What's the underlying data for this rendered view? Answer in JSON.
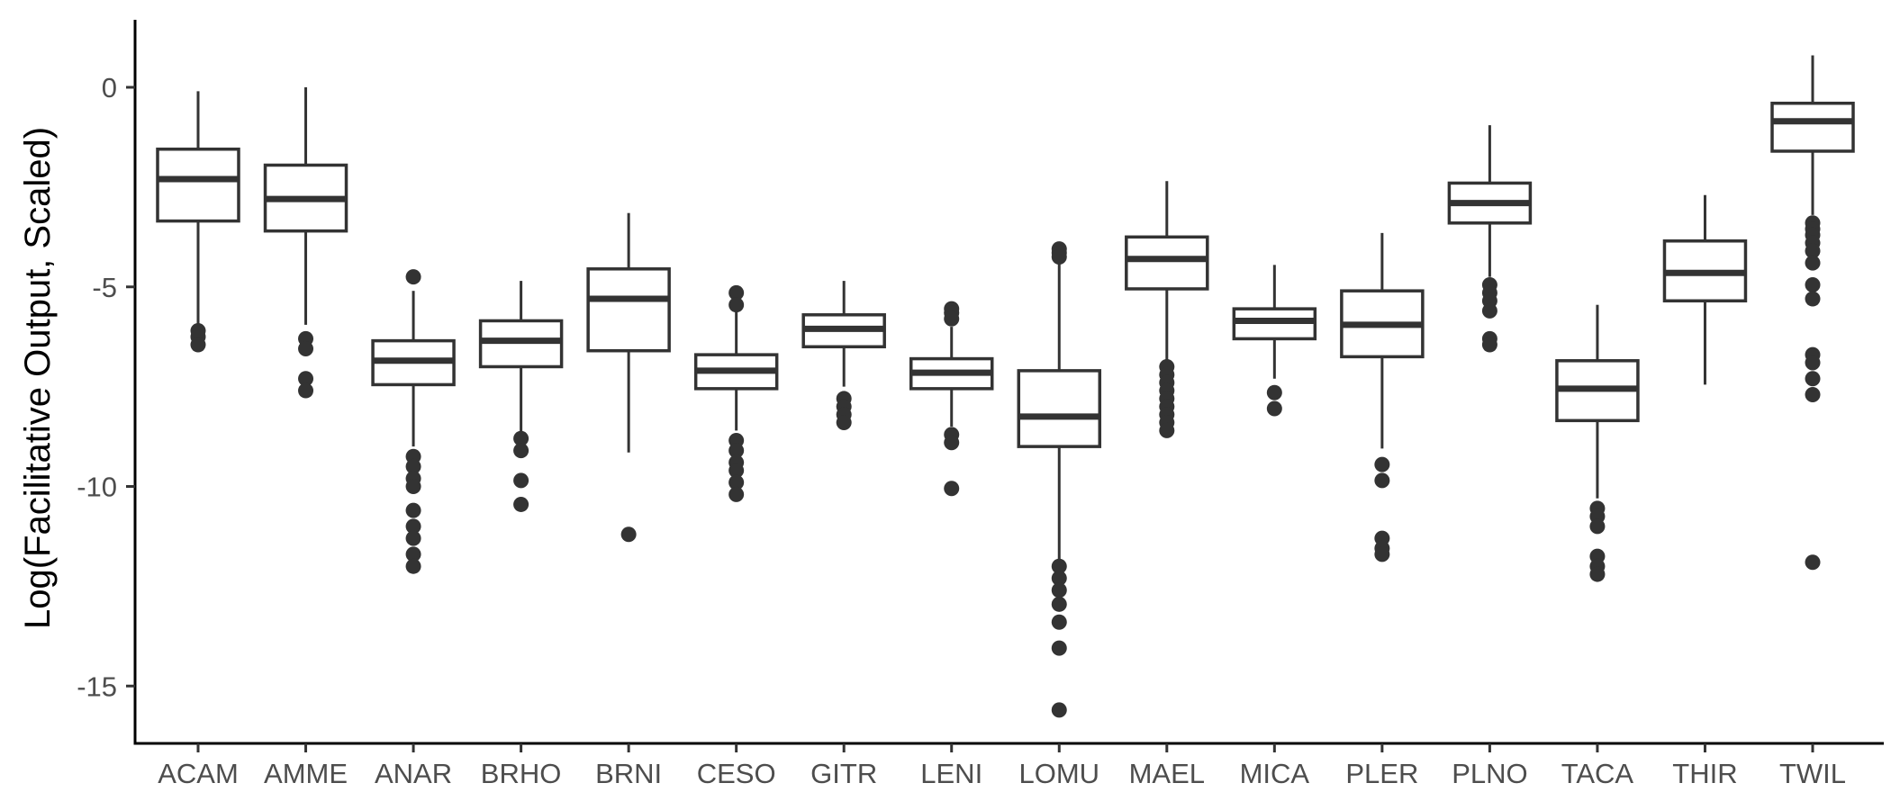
{
  "chart_data": {
    "type": "box",
    "title": "",
    "xlabel": "",
    "ylabel": "Log(Facilitative Output, Scaled)",
    "ylim": [
      -16.3,
      1.7
    ],
    "yticks": [
      0,
      -5,
      -10,
      -15
    ],
    "ytick_labels": [
      "0",
      "-5",
      "-10",
      "-15"
    ],
    "grid": false,
    "categories": [
      "ACAM",
      "AMME",
      "ANAR",
      "BRHO",
      "BRNI",
      "CESO",
      "GITR",
      "LENI",
      "LOMU",
      "MAEL",
      "MICA",
      "PLER",
      "PLNO",
      "TACA",
      "THIR",
      "TWIL"
    ],
    "boxes": [
      {
        "label": "ACAM",
        "whisker_low": -5.95,
        "q1": -3.35,
        "median": -2.3,
        "q3": -1.55,
        "whisker_high": -0.1,
        "outliers": [
          -6.1,
          -6.25,
          -6.45
        ]
      },
      {
        "label": "AMME",
        "whisker_low": -5.95,
        "q1": -3.6,
        "median": -2.8,
        "q3": -1.95,
        "whisker_high": 0.0,
        "outliers": [
          -6.3,
          -6.55,
          -7.3,
          -7.6
        ]
      },
      {
        "label": "ANAR",
        "whisker_low": -9.0,
        "q1": -7.45,
        "median": -6.85,
        "q3": -6.35,
        "whisker_high": -5.1,
        "outliers": [
          -4.75,
          -9.25,
          -9.5,
          -9.8,
          -10.0,
          -10.6,
          -11.0,
          -11.3,
          -11.7,
          -12.0
        ]
      },
      {
        "label": "BRHO",
        "whisker_low": -8.65,
        "q1": -7.0,
        "median": -6.35,
        "q3": -5.85,
        "whisker_high": -4.85,
        "outliers": [
          -8.8,
          -9.1,
          -9.85,
          -10.45
        ]
      },
      {
        "label": "BRNI",
        "whisker_low": -9.15,
        "q1": -6.6,
        "median": -5.3,
        "q3": -4.55,
        "whisker_high": -3.15,
        "outliers": [
          -11.2
        ]
      },
      {
        "label": "CESO",
        "whisker_low": -8.6,
        "q1": -7.55,
        "median": -7.1,
        "q3": -6.7,
        "whisker_high": -5.5,
        "outliers": [
          -5.15,
          -5.45,
          -8.85,
          -9.1,
          -9.4,
          -9.6,
          -9.9,
          -10.2
        ]
      },
      {
        "label": "GITR",
        "whisker_low": -7.5,
        "q1": -6.5,
        "median": -6.05,
        "q3": -5.7,
        "whisker_high": -4.85,
        "outliers": [
          -7.8,
          -8.0,
          -8.2,
          -8.4
        ]
      },
      {
        "label": "LENI",
        "whisker_low": -8.5,
        "q1": -7.55,
        "median": -7.15,
        "q3": -6.8,
        "whisker_high": -6.0,
        "outliers": [
          -5.55,
          -5.65,
          -5.8,
          -8.7,
          -8.9,
          -10.05
        ]
      },
      {
        "label": "LOMU",
        "whisker_low": -11.85,
        "q1": -9.0,
        "median": -8.25,
        "q3": -7.1,
        "whisker_high": -4.4,
        "outliers": [
          -4.05,
          -4.15,
          -4.25,
          -12.0,
          -12.3,
          -12.6,
          -12.95,
          -13.4,
          -14.05,
          -15.6
        ]
      },
      {
        "label": "MAEL",
        "whisker_low": -6.9,
        "q1": -5.05,
        "median": -4.3,
        "q3": -3.75,
        "whisker_high": -2.35,
        "outliers": [
          -7.0,
          -7.2,
          -7.4,
          -7.6,
          -7.8,
          -8.0,
          -8.2,
          -8.4,
          -8.6
        ]
      },
      {
        "label": "MICA",
        "whisker_low": -7.3,
        "q1": -6.3,
        "median": -5.85,
        "q3": -5.55,
        "whisker_high": -4.45,
        "outliers": [
          -7.65,
          -8.05
        ]
      },
      {
        "label": "PLER",
        "whisker_low": -9.05,
        "q1": -6.75,
        "median": -5.95,
        "q3": -5.1,
        "whisker_high": -3.65,
        "outliers": [
          -9.45,
          -9.85,
          -11.3,
          -11.55,
          -11.7
        ]
      },
      {
        "label": "PLNO",
        "whisker_low": -4.75,
        "q1": -3.4,
        "median": -2.9,
        "q3": -2.4,
        "whisker_high": -0.95,
        "outliers": [
          -4.95,
          -5.15,
          -5.35,
          -5.6,
          -6.3,
          -6.45
        ]
      },
      {
        "label": "TACA",
        "whisker_low": -10.3,
        "q1": -8.35,
        "median": -7.55,
        "q3": -6.85,
        "whisker_high": -5.45,
        "outliers": [
          -10.55,
          -10.75,
          -11.0,
          -11.75,
          -12.0,
          -12.2
        ]
      },
      {
        "label": "THIR",
        "whisker_low": -7.45,
        "q1": -5.35,
        "median": -4.65,
        "q3": -3.85,
        "whisker_high": -2.7,
        "outliers": []
      },
      {
        "label": "TWIL",
        "whisker_low": -3.2,
        "q1": -1.6,
        "median": -0.85,
        "q3": -0.4,
        "whisker_high": 0.8,
        "outliers": [
          -3.4,
          -3.55,
          -3.7,
          -3.9,
          -4.1,
          -4.4,
          -4.95,
          -5.3,
          -6.7,
          -6.9,
          -7.3,
          -7.7,
          -11.9
        ]
      }
    ]
  }
}
